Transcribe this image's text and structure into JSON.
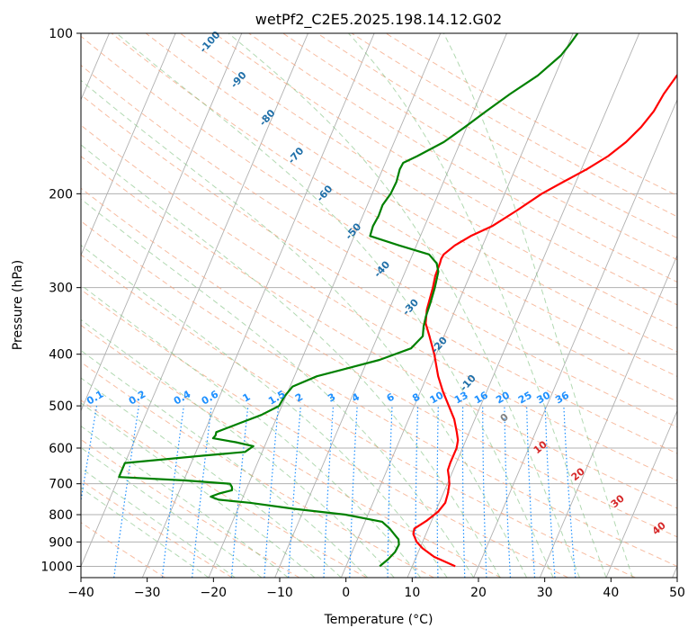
{
  "chart_data": {
    "type": "line",
    "title": "wetPf2_C2E5.2025.198.14.12.G02",
    "xlabel": "Temperature (°C)",
    "ylabel": "Pressure (hPa)",
    "xlim": [
      -40,
      50
    ],
    "ylim": [
      1050,
      100
    ],
    "y_scale": "log",
    "x_ticks": [
      -40,
      -30,
      -20,
      -10,
      0,
      10,
      20,
      30,
      40,
      50
    ],
    "x_tick_labels": [
      "−40",
      "−30",
      "−20",
      "−10",
      "0",
      "10",
      "20",
      "30",
      "40",
      "50"
    ],
    "y_ticks": [
      1000,
      900,
      800,
      700,
      600,
      500,
      400,
      300,
      200,
      100
    ],
    "y_tick_labels": [
      "1000",
      "900",
      "800",
      "700",
      "600",
      "500",
      "400",
      "300",
      "200",
      "100"
    ],
    "grid": true,
    "series": [
      {
        "color": "#ff0000",
        "points": [
          [
            1000,
            16.5
          ],
          [
            960,
            12.7
          ],
          [
            925,
            10.4
          ],
          [
            900,
            9.1
          ],
          [
            870,
            8.1
          ],
          [
            850,
            7.9
          ],
          [
            820,
            9.3
          ],
          [
            790,
            10.4
          ],
          [
            760,
            10.9
          ],
          [
            730,
            10.7
          ],
          [
            700,
            10.3
          ],
          [
            680,
            9.8
          ],
          [
            660,
            9.2
          ],
          [
            640,
            9.1
          ],
          [
            620,
            9.1
          ],
          [
            600,
            9.1
          ],
          [
            580,
            8.8
          ],
          [
            560,
            8.1
          ],
          [
            530,
            6.9
          ],
          [
            500,
            5.2
          ],
          [
            470,
            3.4
          ],
          [
            440,
            1.7
          ],
          [
            400,
            -0.3
          ],
          [
            370,
            -2.2
          ],
          [
            350,
            -3.6
          ],
          [
            330,
            -4.3
          ],
          [
            300,
            -4.8
          ],
          [
            285,
            -5.2
          ],
          [
            270,
            -5.3
          ],
          [
            265,
            -5.4
          ],
          [
            260,
            -5.3
          ],
          [
            250,
            -4.2
          ],
          [
            240,
            -2.4
          ],
          [
            230,
            0.2
          ],
          [
            215,
            2.9
          ],
          [
            200,
            5.6
          ],
          [
            190,
            8.1
          ],
          [
            180,
            10.8
          ],
          [
            170,
            13.2
          ],
          [
            160,
            15.0
          ],
          [
            150,
            16.3
          ],
          [
            140,
            17.2
          ],
          [
            130,
            17.6
          ],
          [
            120,
            18.4
          ],
          [
            115,
            19.2
          ],
          [
            108,
            21.3
          ],
          [
            100,
            23.7
          ]
        ]
      },
      {
        "color": "#008000",
        "points": [
          [
            1000,
            5.1
          ],
          [
            970,
            5.9
          ],
          [
            940,
            6.5
          ],
          [
            910,
            6.6
          ],
          [
            890,
            6.2
          ],
          [
            870,
            5.2
          ],
          [
            850,
            4.2
          ],
          [
            825,
            2.6
          ],
          [
            800,
            -3.4
          ],
          [
            780,
            -11.6
          ],
          [
            760,
            -18.6
          ],
          [
            750,
            -23.5
          ],
          [
            740,
            -24.9
          ],
          [
            730,
            -23.8
          ],
          [
            720,
            -22.1
          ],
          [
            710,
            -22.3
          ],
          [
            700,
            -22.8
          ],
          [
            690,
            -29.8
          ],
          [
            680,
            -40.0
          ],
          [
            640,
            -40.0
          ],
          [
            620,
            -28.6
          ],
          [
            610,
            -22.6
          ],
          [
            595,
            -21.7
          ],
          [
            585,
            -24.6
          ],
          [
            575,
            -28.3
          ],
          [
            568,
            -28.1
          ],
          [
            560,
            -28.2
          ],
          [
            540,
            -25.4
          ],
          [
            520,
            -22.5
          ],
          [
            500,
            -20.4
          ],
          [
            480,
            -20.2
          ],
          [
            460,
            -19.6
          ],
          [
            440,
            -16.6
          ],
          [
            410,
            -8.2
          ],
          [
            390,
            -4.2
          ],
          [
            370,
            -3.2
          ],
          [
            355,
            -3.7
          ],
          [
            340,
            -4.0
          ],
          [
            320,
            -4.2
          ],
          [
            300,
            -4.5
          ],
          [
            280,
            -5.0
          ],
          [
            270,
            -5.8
          ],
          [
            260,
            -7.5
          ],
          [
            250,
            -12.6
          ],
          [
            240,
            -17.6
          ],
          [
            230,
            -17.8
          ],
          [
            220,
            -17.6
          ],
          [
            210,
            -17.7
          ],
          [
            200,
            -17.2
          ],
          [
            190,
            -17.1
          ],
          [
            180,
            -17.4
          ],
          [
            175,
            -17.3
          ],
          [
            170,
            -15.6
          ],
          [
            160,
            -12.5
          ],
          [
            150,
            -10.3
          ],
          [
            140,
            -8.1
          ],
          [
            130,
            -5.6
          ],
          [
            120,
            -2.6
          ],
          [
            110,
            -0.4
          ],
          [
            105,
            0.2
          ],
          [
            100,
            0.7
          ]
        ]
      }
    ],
    "mixing_ratio_labels": [
      "0.1",
      "0.2",
      "0.4",
      "0.6",
      "1",
      "1.5",
      "2",
      "3",
      "4",
      "6",
      "8",
      "10",
      "13",
      "16",
      "20",
      "25",
      "30",
      "36"
    ],
    "moist_adiabat_labels": [
      "-100",
      "-90",
      "-80",
      "-70",
      "-60",
      "-50",
      "-40",
      "-30",
      "-20",
      "-10"
    ],
    "zero_label": "0",
    "dry_adiabat_labels": [
      "10",
      "20",
      "30",
      "40"
    ],
    "colors": {
      "isotherm": "#b0b0b0",
      "dry_adiabat": "#f4a582",
      "moist_adiabat": "#7fbf7f",
      "mixing_ratio": "#1e90ff",
      "moist_label": "#1f6fa8",
      "dry_label": "#d62728",
      "zero_label": "#808080",
      "temperature": "#ff0000",
      "dewpoint": "#008000"
    }
  }
}
